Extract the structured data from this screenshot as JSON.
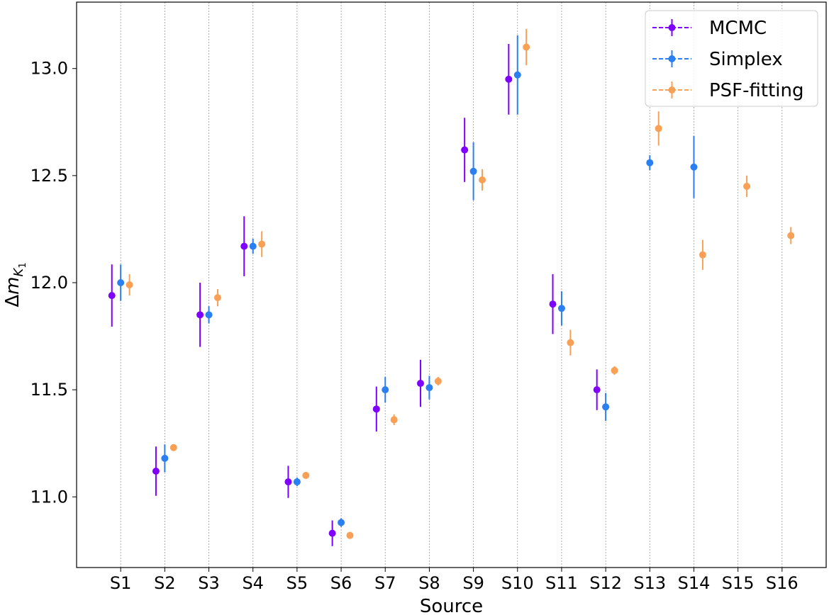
{
  "chart_data": {
    "type": "scatter",
    "xlabel": "Source",
    "ylabel": "Δm",
    "ylabel_sub": "K",
    "ylabel_subsub": "1",
    "categories": [
      "S1",
      "S2",
      "S3",
      "S4",
      "S5",
      "S6",
      "S7",
      "S8",
      "S9",
      "S10",
      "S11",
      "S12",
      "S13",
      "S14",
      "S15",
      "S16"
    ],
    "ylim": [
      10.67,
      13.31
    ],
    "yticks": [
      "11.0",
      "11.5",
      "12.0",
      "12.5",
      "13.0"
    ],
    "grid": "vertical dashed at each source",
    "legend_position": "top-right",
    "series": [
      {
        "name": "MCMC",
        "color": "#7f00ff",
        "values": [
          11.94,
          11.12,
          11.85,
          12.17,
          11.07,
          10.83,
          11.41,
          11.53,
          12.62,
          12.95,
          11.9,
          11.5,
          null,
          null,
          null,
          null
        ],
        "errors": [
          0.145,
          0.115,
          0.15,
          0.14,
          0.075,
          0.06,
          0.105,
          0.11,
          0.15,
          0.165,
          0.14,
          0.095,
          null,
          null,
          null,
          null
        ]
      },
      {
        "name": "Simplex",
        "color": "#2c7ff0",
        "values": [
          12.0,
          11.18,
          11.85,
          12.17,
          11.07,
          10.88,
          11.5,
          11.51,
          12.52,
          12.97,
          11.88,
          11.42,
          12.56,
          12.54,
          null,
          null
        ],
        "errors": [
          0.085,
          0.065,
          0.04,
          0.035,
          0.02,
          0.02,
          0.06,
          0.055,
          0.135,
          0.185,
          0.08,
          0.065,
          0.035,
          0.145,
          null,
          null
        ]
      },
      {
        "name": "PSF-fitting",
        "color": "#f8a055",
        "values": [
          11.99,
          11.23,
          11.93,
          12.18,
          11.1,
          10.82,
          11.36,
          11.54,
          12.48,
          13.1,
          11.72,
          11.59,
          12.72,
          12.13,
          12.45,
          12.22
        ],
        "errors": [
          0.05,
          0.015,
          0.04,
          0.06,
          0.015,
          0.01,
          0.025,
          0.02,
          0.05,
          0.085,
          0.06,
          0.02,
          0.08,
          0.07,
          0.05,
          0.04
        ]
      }
    ]
  }
}
